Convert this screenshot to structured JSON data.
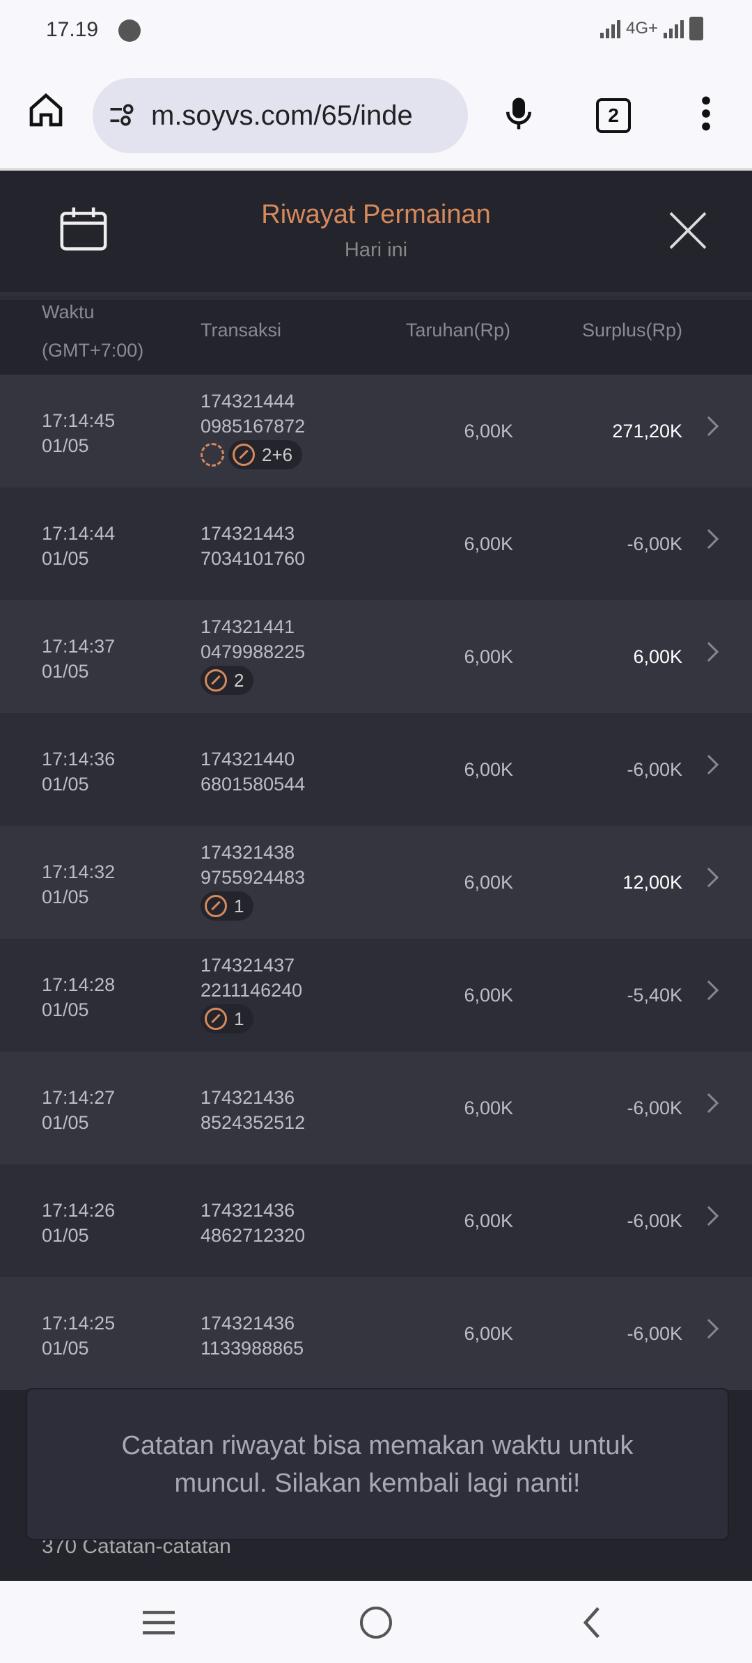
{
  "status_bar": {
    "time": "17.19",
    "network": "4G+"
  },
  "browser": {
    "url": "m.soyvs.com/65/inde",
    "tab_count": "2"
  },
  "header": {
    "title": "Riwayat Permainan",
    "subtitle": "Hari ini"
  },
  "columns": {
    "time": "Waktu",
    "time_tz": "(GMT+7:00)",
    "transaction": "Transaksi",
    "bet": "Taruhan(Rp)",
    "surplus": "Surplus(Rp)"
  },
  "rows": [
    {
      "time": "17:14:45",
      "date": "01/05",
      "id1": "174321444",
      "id2": "0985167872",
      "bet": "6,00K",
      "surplus": "271,20K",
      "positive": true,
      "refresh": true,
      "badge": "2+6"
    },
    {
      "time": "17:14:44",
      "date": "01/05",
      "id1": "174321443",
      "id2": "7034101760",
      "bet": "6,00K",
      "surplus": "-6,00K"
    },
    {
      "time": "17:14:37",
      "date": "01/05",
      "id1": "174321441",
      "id2": "0479988225",
      "bet": "6,00K",
      "surplus": "6,00K",
      "positive": true,
      "badge": "2"
    },
    {
      "time": "17:14:36",
      "date": "01/05",
      "id1": "174321440",
      "id2": "6801580544",
      "bet": "6,00K",
      "surplus": "-6,00K"
    },
    {
      "time": "17:14:32",
      "date": "01/05",
      "id1": "174321438",
      "id2": "9755924483",
      "bet": "6,00K",
      "surplus": "12,00K",
      "positive": true,
      "badge": "1"
    },
    {
      "time": "17:14:28",
      "date": "01/05",
      "id1": "174321437",
      "id2": "2211146240",
      "bet": "6,00K",
      "surplus": "-5,40K",
      "badge": "1"
    },
    {
      "time": "17:14:27",
      "date": "01/05",
      "id1": "174321436",
      "id2": "8524352512",
      "bet": "6,00K",
      "surplus": "-6,00K"
    },
    {
      "time": "17:14:26",
      "date": "01/05",
      "id1": "174321436",
      "id2": "4862712320",
      "bet": "6,00K",
      "surplus": "-6,00K"
    },
    {
      "time": "17:14:25",
      "date": "01/05",
      "id1": "174321436",
      "id2": "1133988865",
      "bet": "6,00K",
      "surplus": "-6,00K"
    }
  ],
  "footer": {
    "count": "370 Catatan-catatan"
  },
  "toast": {
    "message": "Catatan riwayat bisa memakan waktu untuk muncul. Silakan kembali lagi nanti!"
  },
  "colors": {
    "accent": "#d68a5c",
    "row_a": "#35353f",
    "row_b": "#2d2d37",
    "header": "#24242c"
  }
}
